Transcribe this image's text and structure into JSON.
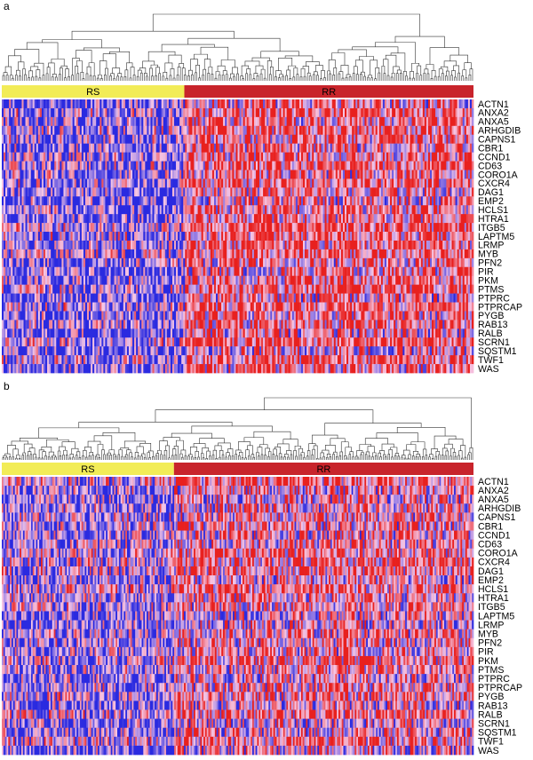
{
  "chart_data": [
    {
      "panel": "a",
      "type": "heatmap",
      "groups": [
        {
          "label": "RS",
          "color": "#f2ec57",
          "fraction": 0.387
        },
        {
          "label": "RR",
          "color": "#c8242b",
          "fraction": 0.613
        }
      ],
      "rows": [
        "ACTN1",
        "ANXA2",
        "ANXA5",
        "ARHGDIB",
        "CAPNS1",
        "CBR1",
        "CCND1",
        "CD63",
        "CORO1A",
        "CXCR4",
        "DAG1",
        "EMP2",
        "HCLS1",
        "HTRA1",
        "ITGB5",
        "LAPTM5",
        "LRMP",
        "MYB",
        "PFN2",
        "PIR",
        "PKM",
        "PTMS",
        "PTPRC",
        "PTPRCAP",
        "PYGB",
        "RAB13",
        "RALB",
        "SCRN1",
        "SQSTM1",
        "TWF1",
        "WAS"
      ],
      "color_scale": {
        "low": "#2a2ae0",
        "mid": "#f6c6e6",
        "high": "#e8201e"
      },
      "dendrogram": "top"
    },
    {
      "panel": "b",
      "type": "heatmap",
      "groups": [
        {
          "label": "RS",
          "color": "#f2ec57",
          "fraction": 0.365
        },
        {
          "label": "RR",
          "color": "#c8242b",
          "fraction": 0.635
        }
      ],
      "rows": [
        "ACTN1",
        "ANXA2",
        "ANXA5",
        "ARHGDIB",
        "CAPNS1",
        "CBR1",
        "CCND1",
        "CD63",
        "CORO1A",
        "CXCR4",
        "DAG1",
        "EMP2",
        "HCLS1",
        "HTRA1",
        "ITGB5",
        "LAPTM5",
        "LRMP",
        "MYB",
        "PFN2",
        "PIR",
        "PKM",
        "PTMS",
        "PTPRC",
        "PTPRCAP",
        "PYGB",
        "RAB13",
        "RALB",
        "SCRN1",
        "SQSTM1",
        "TWF1",
        "WAS"
      ],
      "color_scale": {
        "low": "#2a2ae0",
        "mid": "#f6c6e6",
        "high": "#e8201e"
      },
      "dendrogram": "top"
    }
  ],
  "panels": [
    {
      "label": "a"
    },
    {
      "label": "b"
    }
  ]
}
